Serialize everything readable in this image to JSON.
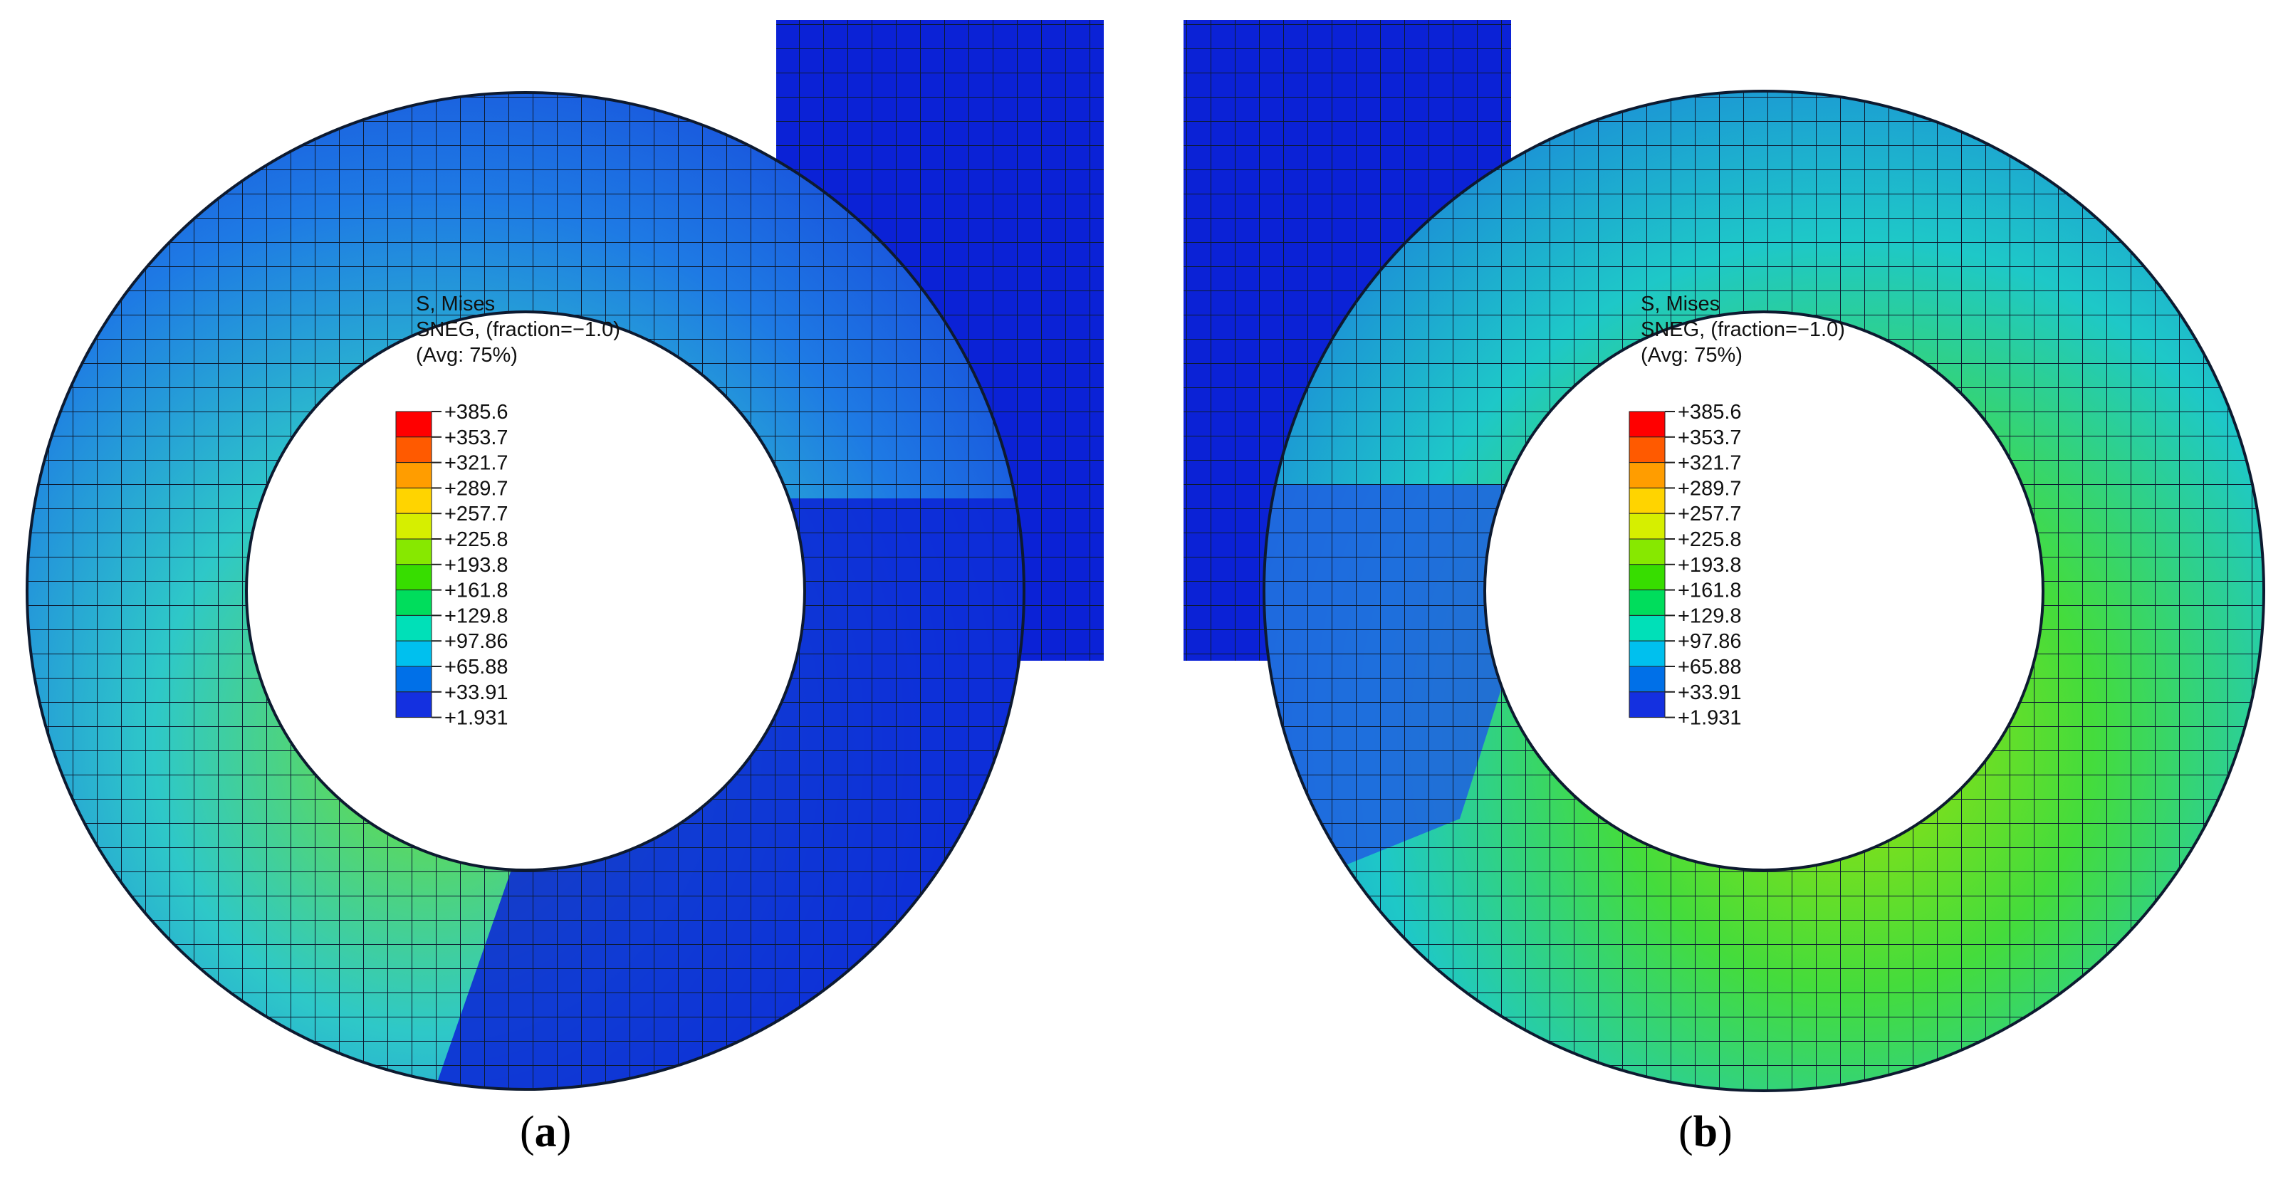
{
  "figure": {
    "panels": [
      {
        "id": "a",
        "caption": "a",
        "legend": {
          "title": "S, Mises",
          "subtitle": "SNEG, (fraction=−1.0)",
          "avg": "(Avg: 75%)",
          "values": [
            "+385.6",
            "+353.7",
            "+321.7",
            "+289.7",
            "+257.7",
            "+225.8",
            "+193.8",
            "+161.8",
            "+129.8",
            "+97.86",
            "+65.88",
            "+33.91",
            "+1.931"
          ]
        }
      },
      {
        "id": "b",
        "caption": "b",
        "legend": {
          "title": "S, Mises",
          "subtitle": "SNEG, (fraction=−1.0)",
          "avg": "(Avg: 75%)",
          "values": [
            "+385.6",
            "+353.7",
            "+321.7",
            "+289.7",
            "+257.7",
            "+225.8",
            "+193.8",
            "+161.8",
            "+129.8",
            "+97.86",
            "+65.88",
            "+33.91",
            "+1.931"
          ]
        }
      }
    ],
    "colors": {
      "scale": [
        "#ff0000",
        "#ff5a00",
        "#ff9d00",
        "#ffd400",
        "#d6ef00",
        "#87e800",
        "#37dd00",
        "#00dd5c",
        "#00e0b8",
        "#00c0ee",
        "#0070e8",
        "#1430e0"
      ],
      "base_blue": "#0b22d6",
      "mid_blue": "#1e5fe0",
      "light_blue": "#2aa0e8",
      "mesh_line": "#0d1a30"
    }
  }
}
